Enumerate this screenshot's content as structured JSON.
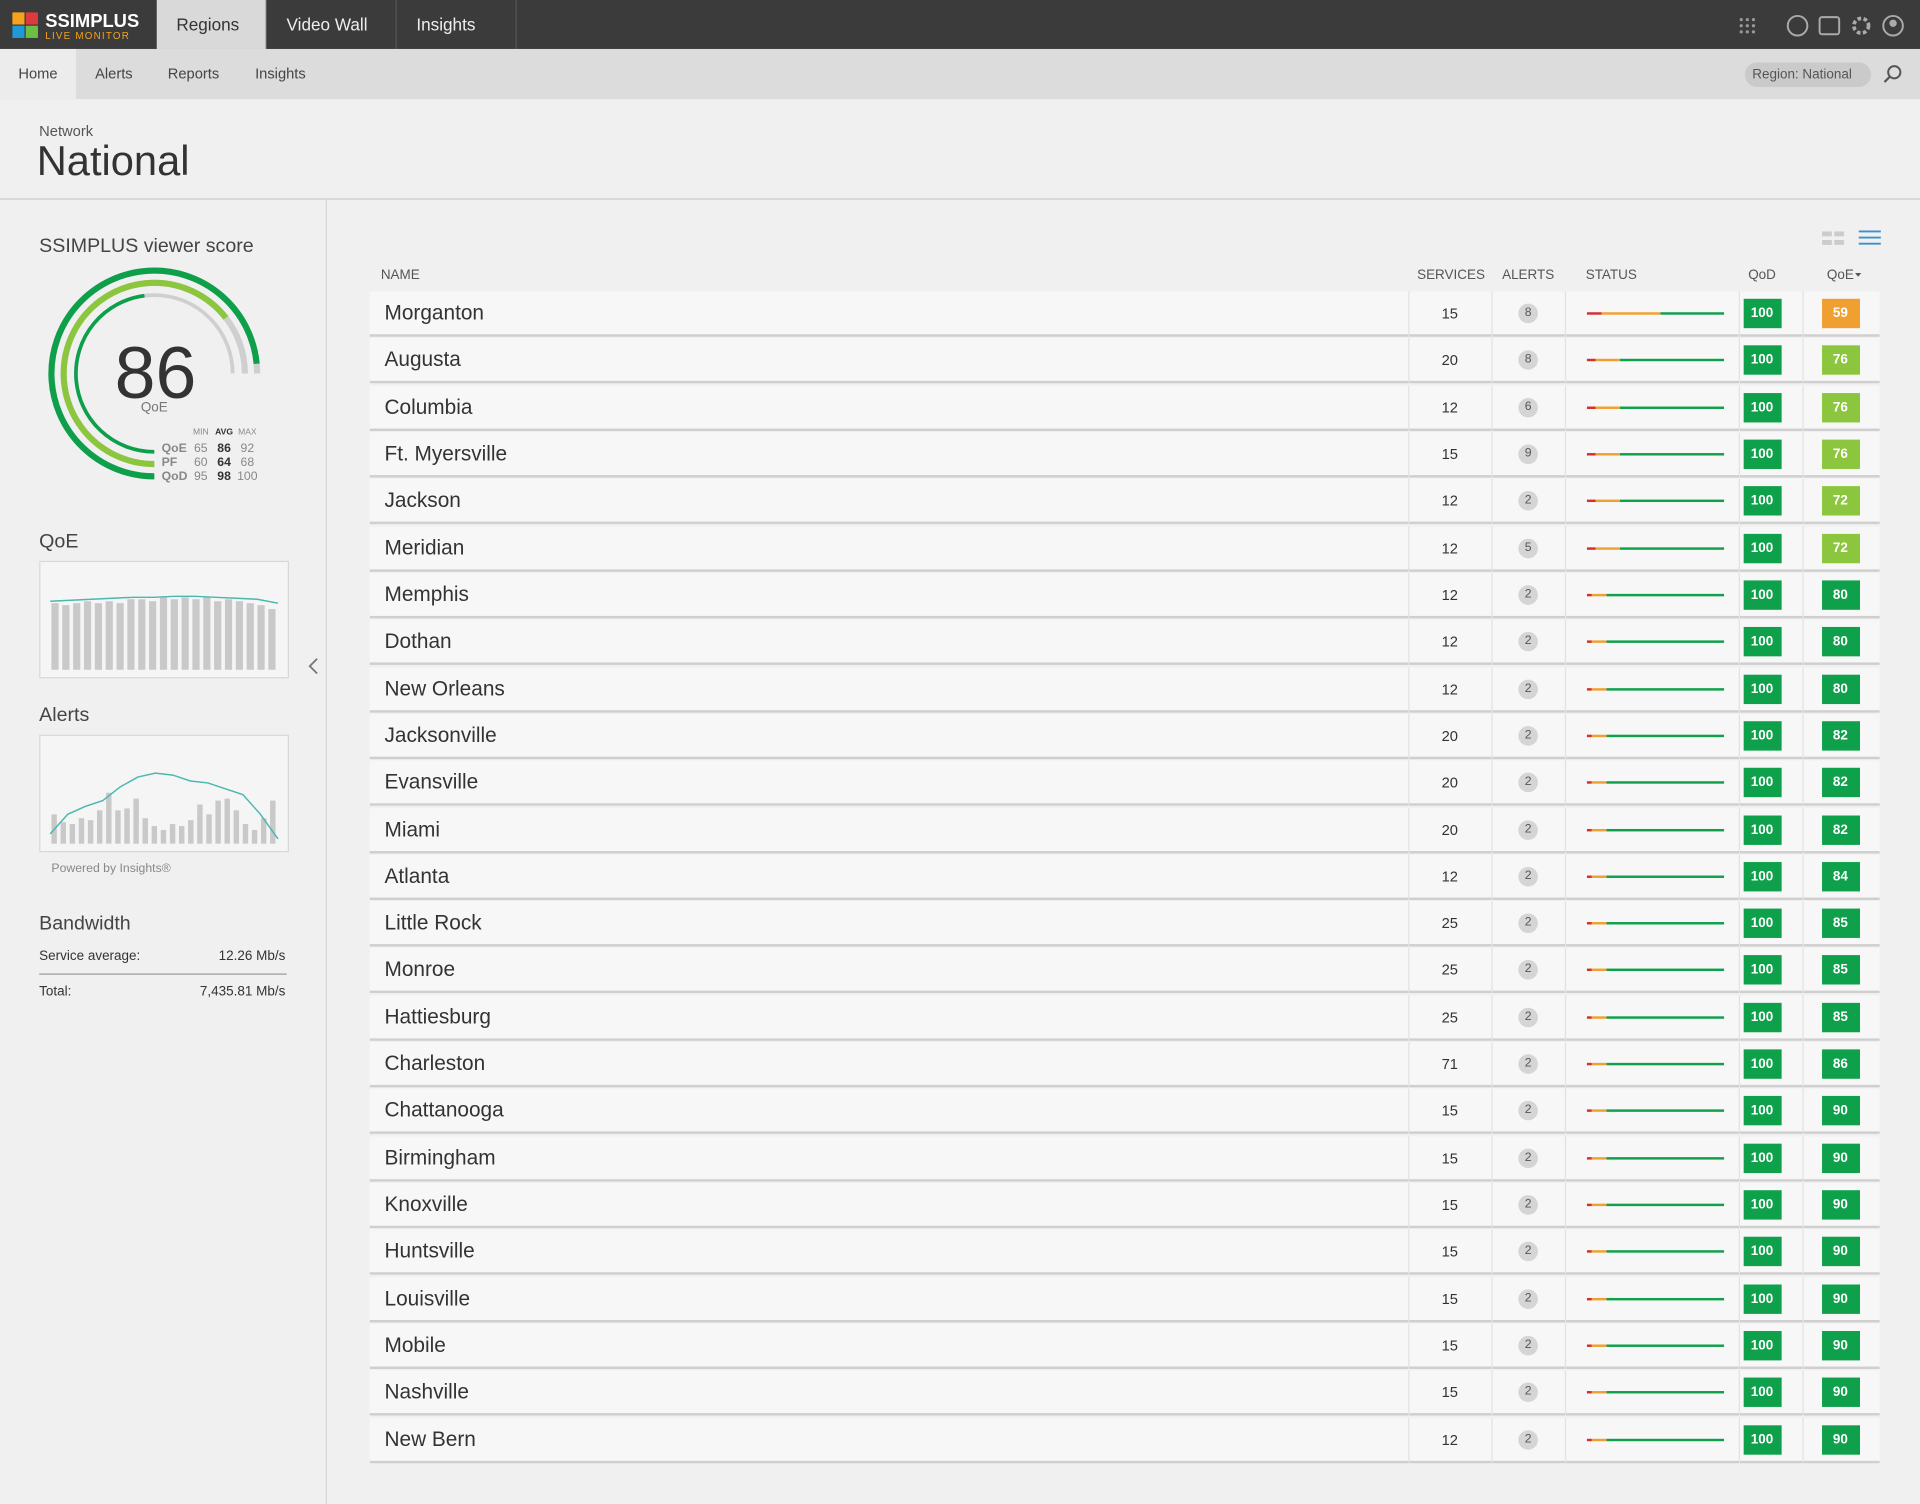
{
  "nav": {
    "brand": "SSIMPLUS",
    "brand_sub": "LIVE MONITOR",
    "tabs": [
      "Regions",
      "Video Wall",
      "Insights"
    ]
  },
  "subnav": {
    "tabs": [
      "Home",
      "Alerts",
      "Reports",
      "Insights"
    ],
    "filter": "Region: National"
  },
  "header": {
    "label": "Network",
    "title": "National"
  },
  "sidebar": {
    "score": {
      "title": "SSIMPLUS viewer score",
      "value": 86,
      "label": "QoE",
      "columns": [
        "MIN",
        "AVG",
        "MAX"
      ],
      "rows": [
        {
          "name": "QoE",
          "min": 65,
          "avg": 86,
          "max": 92
        },
        {
          "name": "PF",
          "min": 60,
          "avg": 64,
          "max": 68
        },
        {
          "name": "QoD",
          "min": 95,
          "avg": 98,
          "max": 100
        }
      ]
    },
    "qoe_chart": {
      "title": "QoE",
      "bars": [
        68,
        66,
        68,
        70,
        68,
        70,
        68,
        72,
        72,
        70,
        74,
        72,
        74,
        72,
        74,
        70,
        72,
        70,
        68,
        66,
        62
      ],
      "trend": [
        70,
        71,
        72,
        73,
        74,
        74,
        75,
        75,
        74,
        73,
        72,
        68
      ]
    },
    "alerts_chart": {
      "title": "Alerts",
      "bars": [
        30,
        22,
        20,
        26,
        24,
        34,
        52,
        34,
        36,
        46,
        26,
        18,
        14,
        20,
        18,
        24,
        40,
        30,
        44,
        46,
        34,
        20,
        14,
        26,
        44
      ],
      "trend": [
        10,
        30,
        38,
        44,
        58,
        68,
        72,
        70,
        64,
        62,
        56,
        50,
        30,
        5
      ]
    },
    "powered_by": "Powered by Insights®",
    "bandwidth": {
      "title": "Bandwidth",
      "rows": [
        {
          "label": "Service average:",
          "value": "12.26 Mb/s"
        },
        {
          "label": "Total:",
          "value": "7,435.81 Mb/s"
        }
      ]
    }
  },
  "table": {
    "columns": [
      "NAME",
      "SERVICES",
      "ALERTS",
      "STATUS",
      "QoD",
      "QoE"
    ],
    "rows": [
      {
        "name": "Morganton",
        "services": 15,
        "alerts": 8,
        "status": [
          11,
          43,
          46
        ],
        "qod": 100,
        "qoe": 59
      },
      {
        "name": "Augusta",
        "services": 20,
        "alerts": 8,
        "status": [
          6,
          18,
          76
        ],
        "qod": 100,
        "qoe": 76
      },
      {
        "name": "Columbia",
        "services": 12,
        "alerts": 6,
        "status": [
          6,
          18,
          76
        ],
        "qod": 100,
        "qoe": 76
      },
      {
        "name": "Ft. Myersville",
        "services": 15,
        "alerts": 9,
        "status": [
          6,
          18,
          76
        ],
        "qod": 100,
        "qoe": 76
      },
      {
        "name": "Jackson",
        "services": 12,
        "alerts": 2,
        "status": [
          6,
          18,
          76
        ],
        "qod": 100,
        "qoe": 72
      },
      {
        "name": "Meridian",
        "services": 12,
        "alerts": 5,
        "status": [
          6,
          18,
          76
        ],
        "qod": 100,
        "qoe": 72
      },
      {
        "name": "Memphis",
        "services": 12,
        "alerts": 2,
        "status": [
          4,
          10,
          86
        ],
        "qod": 100,
        "qoe": 80
      },
      {
        "name": "Dothan",
        "services": 12,
        "alerts": 2,
        "status": [
          4,
          10,
          86
        ],
        "qod": 100,
        "qoe": 80
      },
      {
        "name": "New Orleans",
        "services": 12,
        "alerts": 2,
        "status": [
          4,
          10,
          86
        ],
        "qod": 100,
        "qoe": 80
      },
      {
        "name": "Jacksonville",
        "services": 20,
        "alerts": 2,
        "status": [
          4,
          10,
          86
        ],
        "qod": 100,
        "qoe": 82
      },
      {
        "name": "Evansville",
        "services": 20,
        "alerts": 2,
        "status": [
          4,
          10,
          86
        ],
        "qod": 100,
        "qoe": 82
      },
      {
        "name": "Miami",
        "services": 20,
        "alerts": 2,
        "status": [
          4,
          10,
          86
        ],
        "qod": 100,
        "qoe": 82
      },
      {
        "name": "Atlanta",
        "services": 12,
        "alerts": 2,
        "status": [
          4,
          10,
          86
        ],
        "qod": 100,
        "qoe": 84
      },
      {
        "name": "Little Rock",
        "services": 25,
        "alerts": 2,
        "status": [
          4,
          10,
          86
        ],
        "qod": 100,
        "qoe": 85
      },
      {
        "name": "Monroe",
        "services": 25,
        "alerts": 2,
        "status": [
          4,
          10,
          86
        ],
        "qod": 100,
        "qoe": 85
      },
      {
        "name": "Hattiesburg",
        "services": 25,
        "alerts": 2,
        "status": [
          4,
          10,
          86
        ],
        "qod": 100,
        "qoe": 85
      },
      {
        "name": "Charleston",
        "services": 71,
        "alerts": 2,
        "status": [
          4,
          10,
          86
        ],
        "qod": 100,
        "qoe": 86
      },
      {
        "name": "Chattanooga",
        "services": 15,
        "alerts": 2,
        "status": [
          4,
          10,
          86
        ],
        "qod": 100,
        "qoe": 90
      },
      {
        "name": "Birmingham",
        "services": 15,
        "alerts": 2,
        "status": [
          4,
          10,
          86
        ],
        "qod": 100,
        "qoe": 90
      },
      {
        "name": "Knoxville",
        "services": 15,
        "alerts": 2,
        "status": [
          4,
          10,
          86
        ],
        "qod": 100,
        "qoe": 90
      },
      {
        "name": "Huntsville",
        "services": 15,
        "alerts": 2,
        "status": [
          4,
          10,
          86
        ],
        "qod": 100,
        "qoe": 90
      },
      {
        "name": "Louisville",
        "services": 15,
        "alerts": 2,
        "status": [
          4,
          10,
          86
        ],
        "qod": 100,
        "qoe": 90
      },
      {
        "name": "Mobile",
        "services": 15,
        "alerts": 2,
        "status": [
          4,
          10,
          86
        ],
        "qod": 100,
        "qoe": 90
      },
      {
        "name": "Nashville",
        "services": 15,
        "alerts": 2,
        "status": [
          4,
          10,
          86
        ],
        "qod": 100,
        "qoe": 90
      },
      {
        "name": "New Bern",
        "services": 12,
        "alerts": 2,
        "status": [
          4,
          10,
          86
        ],
        "qod": 100,
        "qoe": 90
      }
    ]
  }
}
